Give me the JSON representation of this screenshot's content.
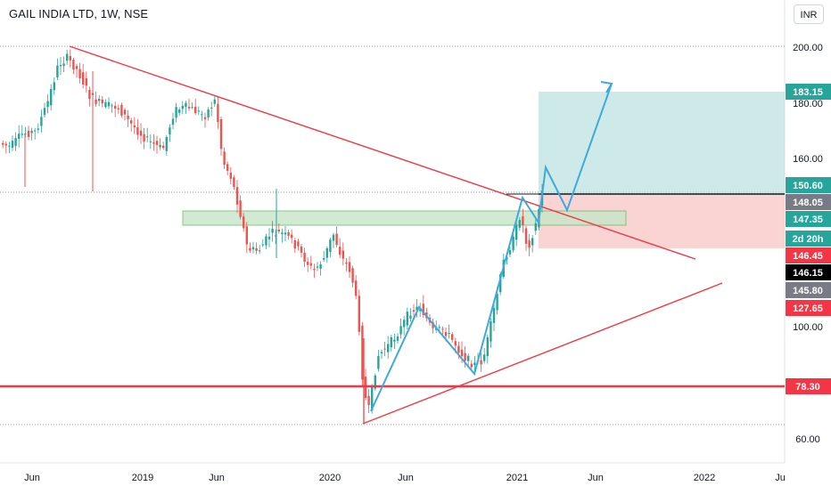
{
  "header": {
    "title": "GAIL INDIA LTD, 1W, NSE",
    "currency": "INR"
  },
  "chart_data": {
    "type": "candlestick",
    "y_ticks": [
      "200.00",
      "180.00",
      "160.00",
      "100.00",
      "60.00"
    ],
    "x_ticks": [
      "Jun",
      "2019",
      "Jun",
      "2020",
      "Jun",
      "2021",
      "Jun",
      "2022",
      "Ju"
    ],
    "price_labels": [
      {
        "text": "183.15",
        "color": "#26a69a",
        "text_color": "#ffffff"
      },
      {
        "text": "150.60",
        "color": "#26a69a",
        "text_color": "#ffffff"
      },
      {
        "text": "148.05",
        "color": "#787b86",
        "text_color": "#ffffff"
      },
      {
        "text": "147.35",
        "color": "#26a69a",
        "text_color": "#ffffff"
      },
      {
        "text": "2d 20h",
        "color": "#26a69a",
        "text_color": "#ffffff"
      },
      {
        "text": "146.45",
        "color": "#f23645",
        "text_color": "#ffffff"
      },
      {
        "text": "146.15",
        "color": "#000000",
        "text_color": "#ffffff"
      },
      {
        "text": "145.80",
        "color": "#787b86",
        "text_color": "#ffffff"
      },
      {
        "text": "127.65",
        "color": "#f23645",
        "text_color": "#ffffff"
      },
      {
        "text": "78.30",
        "color": "#f23645",
        "text_color": "#ffffff"
      }
    ],
    "colors": {
      "up": "#26a69a",
      "down": "#ef5350",
      "trendline": "#f23645",
      "projection": "#3fa9de",
      "target_zone": "#b2dfdb",
      "stop_zone": "#f8c9c8",
      "support_zone": "#c8e6c9"
    }
  }
}
